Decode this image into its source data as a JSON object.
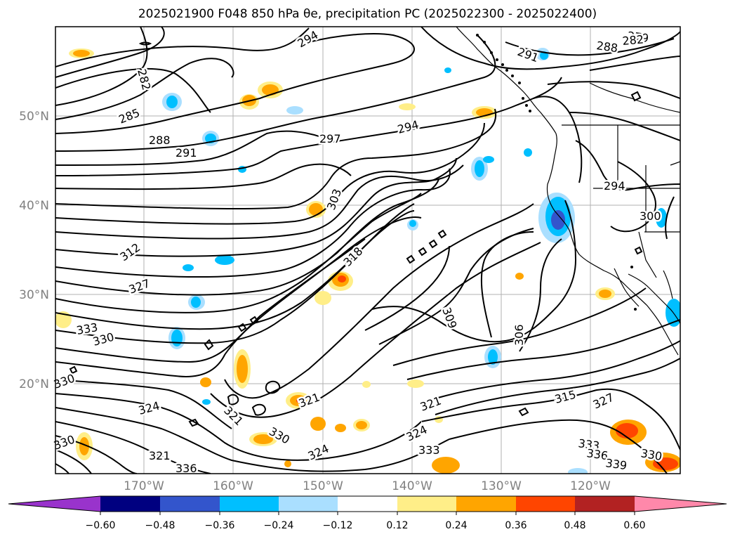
{
  "title": "2025021900 F048 850 hPa θe, precipitation PC (2025022300 - 2025022400)",
  "map": {
    "lat_labels": [
      "50°N",
      "40°N",
      "30°N",
      "20°N"
    ],
    "lon_labels": [
      "170°W",
      "160°W",
      "150°W",
      "140°W",
      "130°W",
      "120°W"
    ],
    "contour_labels": [
      "279",
      "282",
      "288",
      "291",
      "294",
      "282",
      "285",
      "288",
      "291",
      "294",
      "297",
      "294",
      "303",
      "312",
      "318",
      "327",
      "333",
      "330",
      "294",
      "300",
      "309",
      "306",
      "315",
      "327",
      "333",
      "336",
      "339",
      "330",
      "324",
      "321",
      "321",
      "324",
      "333",
      "324",
      "321",
      "336",
      "330",
      "330",
      "330",
      "321"
    ],
    "grid_color": "#b0b0b0"
  },
  "colorbar": {
    "colors": [
      "#9933cc",
      "#000080",
      "#3355cc",
      "#00bfff",
      "#aadfff",
      "#ffffff",
      "#ffee88",
      "#ffa500",
      "#ff4500",
      "#b22222",
      "#ff88aa"
    ],
    "ticks": [
      "−0.60",
      "−0.48",
      "−0.36",
      "−0.24",
      "−0.12",
      "0.12",
      "0.24",
      "0.36",
      "0.48",
      "0.60"
    ]
  }
}
